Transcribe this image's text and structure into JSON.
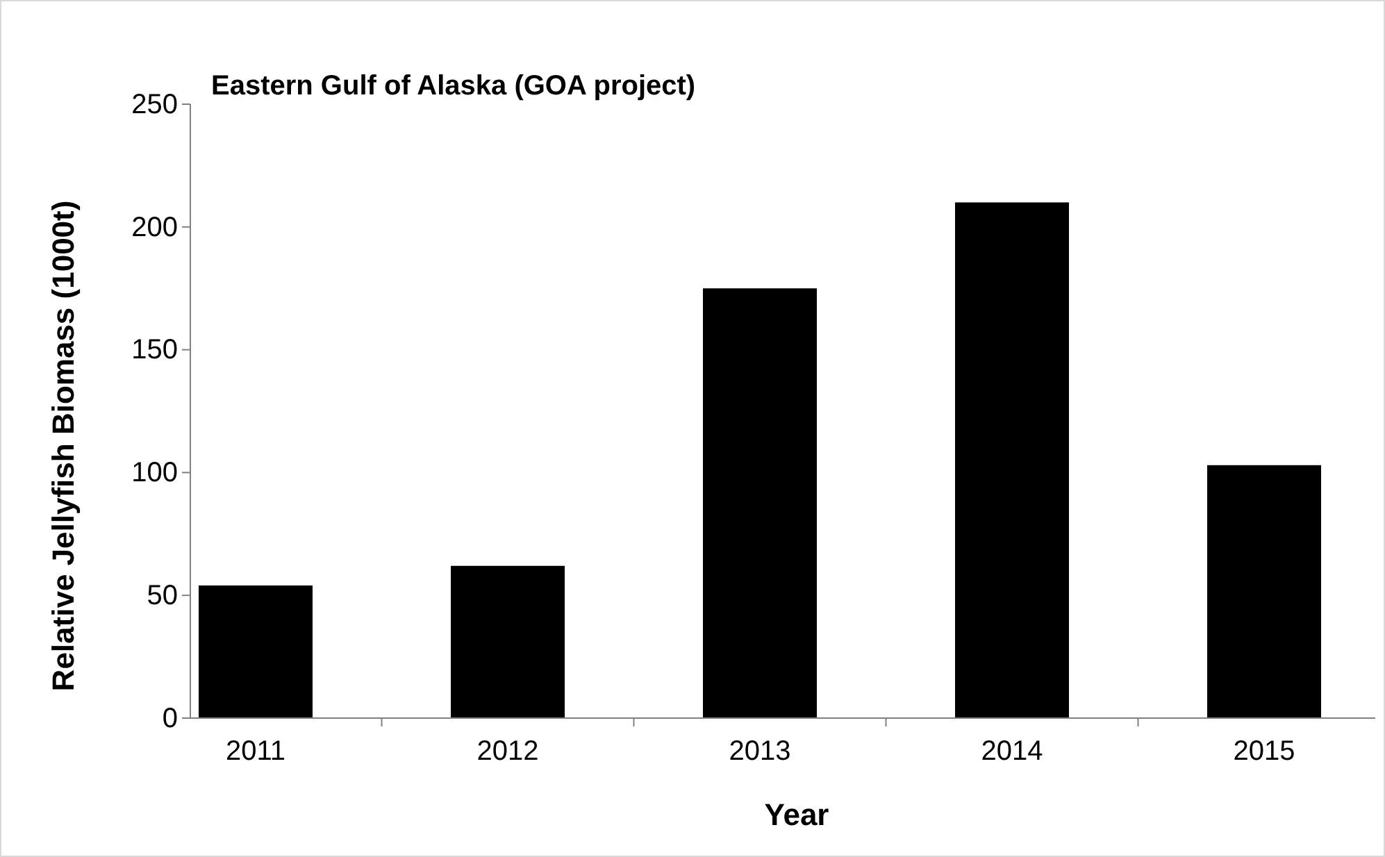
{
  "chart_data": {
    "type": "bar",
    "title": "Eastern Gulf of Alaska (GOA project)",
    "xlabel": "Year",
    "ylabel": "Relative Jellyfish  Biomass (1000t)",
    "categories": [
      "2011",
      "2012",
      "2013",
      "2014",
      "2015"
    ],
    "values": [
      54,
      62,
      175,
      210,
      103
    ],
    "color": "#000000",
    "ylim": [
      0,
      250
    ],
    "yticks": [
      0,
      50,
      100,
      150,
      200,
      250
    ],
    "grid": false
  }
}
